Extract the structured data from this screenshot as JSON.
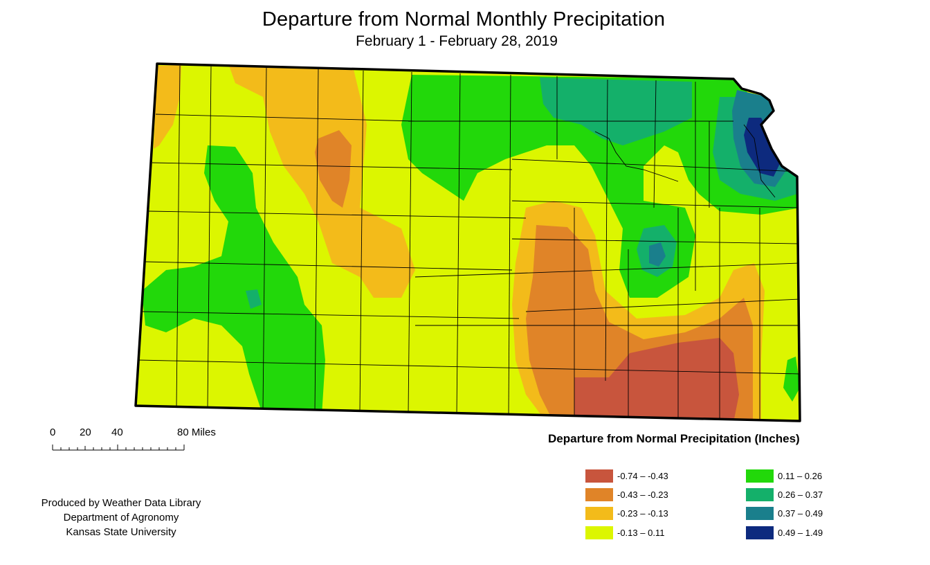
{
  "title": "Departure from Normal Monthly Precipitation",
  "subtitle": "February 1 - February 28, 2019",
  "scale_bar": {
    "ticks": [
      "0",
      "20",
      "40",
      "80 Miles"
    ]
  },
  "legend": {
    "title": "Departure from Normal Precipitation (Inches)",
    "items": [
      {
        "label": "-0.74 – -0.43",
        "color": "#c8553d"
      },
      {
        "label": "-0.43 – -0.23",
        "color": "#e08428"
      },
      {
        "label": "-0.23 – -0.13",
        "color": "#f3bb1a"
      },
      {
        "label": "-0.13 – 0.11",
        "color": "#dcf600"
      },
      {
        "label": "0.11 – 0.26",
        "color": "#22d80a"
      },
      {
        "label": "0.26 – 0.37",
        "color": "#14b06a"
      },
      {
        "label": "0.37 – 0.49",
        "color": "#1a7f8c"
      },
      {
        "label": "0.49 – 1.49",
        "color": "#0d2a7e"
      }
    ]
  },
  "credits": {
    "line1": "Produced by Weather Data Library",
    "line2": "Department of Agronomy",
    "line3": "Kansas State University"
  },
  "map": {
    "region": "Kansas",
    "boundary_color": "#000000",
    "county_line_color": "#000000"
  }
}
